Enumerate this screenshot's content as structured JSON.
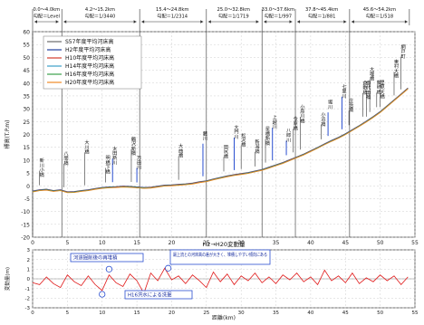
{
  "chart_data": [
    {
      "type": "line",
      "ylabel": "標高(T.P.m)",
      "xlim": [
        0,
        55
      ],
      "ylim": [
        -20,
        60
      ],
      "y_ticks": [
        -20,
        -15,
        -10,
        -5,
        0,
        5,
        10,
        15,
        20,
        25,
        30,
        35,
        40,
        45,
        50,
        55,
        60
      ],
      "x_ticks": [
        0,
        5,
        10,
        15,
        20,
        25,
        30,
        35,
        40,
        45,
        50,
        55
      ],
      "grid": true,
      "legend_position": "top-left",
      "x": [
        0,
        1,
        2,
        3,
        4,
        5,
        6,
        7,
        8,
        9,
        10,
        11,
        12,
        13,
        14,
        15,
        16,
        17,
        18,
        19,
        20,
        21,
        22,
        23,
        24,
        25,
        26,
        27,
        28,
        29,
        30,
        31,
        32,
        33,
        34,
        35,
        36,
        37,
        38,
        39,
        40,
        41,
        42,
        43,
        44,
        45,
        46,
        47,
        48,
        49,
        50,
        51,
        52,
        53,
        54
      ],
      "series": [
        {
          "name": "S57年度平均河床高",
          "color": "#6b6b6b",
          "values": [
            -2,
            -1.5,
            -1.3,
            -1.8,
            -1.5,
            -2.3,
            -2.2,
            -1.8,
            -1.5,
            -1.0,
            -0.6,
            -0.4,
            -0.3,
            -0.1,
            -0.2,
            -0.4,
            -0.6,
            -0.5,
            -0.1,
            0.3,
            0.4,
            0.6,
            0.8,
            1.1,
            1.6,
            2.0,
            2.7,
            3.3,
            3.9,
            4.4,
            4.8,
            5.2,
            5.8,
            6.4,
            7.3,
            8.2,
            9.1,
            10.2,
            11.3,
            12.4,
            13.7,
            15.0,
            16.4,
            17.7,
            18.9,
            20.3,
            21.9,
            23.5,
            25.2,
            27.0,
            28.9,
            31.2,
            33.5,
            35.8,
            38.1
          ]
        },
        {
          "name": "H2年度平均河床高",
          "color": "#1f3f9e",
          "values": [
            -2.1,
            -1.6,
            -1.4,
            -1.9,
            -1.6,
            -2.4,
            -2.3,
            -1.9,
            -1.6,
            -1.1,
            -0.7,
            -0.5,
            -0.4,
            -0.2,
            -0.3,
            -0.5,
            -0.7,
            -0.6,
            -0.2,
            0.2,
            0.3,
            0.5,
            0.7,
            1.0,
            1.5,
            1.9,
            2.6,
            3.2,
            3.8,
            4.3,
            4.7,
            5.1,
            5.7,
            6.3,
            7.2,
            8.1,
            9.0,
            10.1,
            11.2,
            12.3,
            13.6,
            14.9,
            16.3,
            17.6,
            18.8,
            20.2,
            21.8,
            23.4,
            25.1,
            26.9,
            28.8,
            31.1,
            33.4,
            35.7,
            38.0
          ]
        },
        {
          "name": "H10年度平均河床高",
          "color": "#d33a2c",
          "values": [
            -2.2,
            -1.7,
            -1.5,
            -2.0,
            -1.7,
            -2.5,
            -2.4,
            -2.0,
            -1.7,
            -1.2,
            -0.8,
            -0.6,
            -0.5,
            -0.3,
            -0.4,
            -0.6,
            -0.8,
            -0.7,
            -0.3,
            0.1,
            0.2,
            0.4,
            0.6,
            0.9,
            1.4,
            1.8,
            2.5,
            3.1,
            3.7,
            4.2,
            4.6,
            5.0,
            5.6,
            6.2,
            7.1,
            8.0,
            8.9,
            10.0,
            11.1,
            12.2,
            13.5,
            14.8,
            16.2,
            17.5,
            18.7,
            20.1,
            21.7,
            23.3,
            25.0,
            26.8,
            28.7,
            31.0,
            33.3,
            35.6,
            37.9
          ]
        },
        {
          "name": "H14年度平均河床高",
          "color": "#3ba0c8",
          "values": [
            -2.3,
            -1.8,
            -1.6,
            -2.1,
            -1.8,
            -2.6,
            -2.5,
            -2.1,
            -1.8,
            -1.3,
            -0.9,
            -0.7,
            -0.6,
            -0.4,
            -0.5,
            -0.7,
            -0.9,
            -0.8,
            -0.4,
            0.0,
            0.1,
            0.3,
            0.5,
            0.8,
            1.3,
            1.7,
            2.4,
            3.0,
            3.6,
            4.1,
            4.5,
            4.9,
            5.5,
            6.1,
            7.0,
            7.9,
            8.8,
            9.9,
            11.0,
            12.1,
            13.4,
            14.7,
            16.1,
            17.4,
            18.6,
            20.0,
            21.6,
            23.2,
            24.9,
            26.7,
            28.6,
            30.9,
            33.2,
            35.5,
            37.8
          ]
        },
        {
          "name": "H16年度平均河床高",
          "color": "#3aa04a",
          "values": [
            -2.3,
            -1.8,
            -1.6,
            -2.1,
            -1.8,
            -2.6,
            -2.5,
            -2.1,
            -1.8,
            -1.3,
            -0.9,
            -0.7,
            -0.6,
            -0.4,
            -0.5,
            -0.7,
            -0.9,
            -0.8,
            -0.4,
            0.0,
            0.1,
            0.3,
            0.5,
            0.8,
            1.3,
            1.7,
            2.4,
            3.0,
            3.6,
            4.1,
            4.5,
            4.9,
            5.5,
            6.1,
            7.0,
            7.9,
            8.8,
            9.9,
            11.0,
            12.1,
            13.4,
            14.7,
            16.1,
            17.4,
            18.6,
            20.0,
            21.6,
            23.2,
            24.9,
            26.7,
            28.6,
            30.9,
            33.2,
            35.5,
            37.8
          ]
        },
        {
          "name": "H20年度平均河床高",
          "color": "#f08a24",
          "values": [
            -2.4,
            -1.9,
            -1.7,
            -2.2,
            -1.9,
            -2.7,
            -2.6,
            -2.2,
            -1.9,
            -1.4,
            -1.0,
            -0.8,
            -0.7,
            -0.5,
            -0.6,
            -0.8,
            -1.0,
            -0.9,
            -0.5,
            -0.1,
            0.0,
            0.2,
            0.4,
            0.7,
            1.2,
            1.6,
            2.3,
            2.9,
            3.5,
            4.0,
            4.4,
            4.8,
            5.4,
            6.0,
            6.9,
            7.8,
            8.7,
            9.8,
            10.9,
            12.0,
            13.3,
            14.6,
            16.0,
            17.3,
            18.5,
            19.9,
            21.5,
            23.1,
            24.8,
            26.6,
            28.5,
            30.8,
            33.1,
            35.4,
            37.7
          ]
        }
      ],
      "section_labels": [
        {
          "range": "0.0〜4.0km",
          "slope": "勾配＝Level",
          "from": 0,
          "to": 4.0
        },
        {
          "range": "4.2〜15.2km",
          "slope": "勾配＝1/3440",
          "from": 4.2,
          "to": 15.2
        },
        {
          "range": "15.4〜24.8km",
          "slope": "勾配＝1/2314",
          "from": 15.4,
          "to": 24.8
        },
        {
          "range": "25.0〜32.8km",
          "slope": "勾配＝1/1719",
          "from": 25.0,
          "to": 32.8
        },
        {
          "range": "33.0〜37.6km",
          "slope": "勾配＝1/997",
          "from": 33.0,
          "to": 37.6
        },
        {
          "range": "37.8〜45.4km",
          "slope": "勾配＝1/881",
          "from": 37.8,
          "to": 45.4
        },
        {
          "range": "45.6〜54.2km",
          "slope": "勾配＝1/518",
          "from": 45.6,
          "to": 54.2
        }
      ],
      "annotations": [
        {
          "text": "新川小橋",
          "x": 1.0
        },
        {
          "text": "八間橋",
          "x": 4.5
        },
        {
          "text": "大川橋",
          "x": 7.5
        },
        {
          "text": "明橋下橋",
          "x": 10.5
        },
        {
          "text": "太田新川",
          "x": 11.5
        },
        {
          "text": "鶴沢新橋",
          "x": 14.2
        },
        {
          "text": "万田川",
          "x": 15.0
        },
        {
          "text": "大曲橋",
          "x": 21.0
        },
        {
          "text": "藪川",
          "x": 24.5
        },
        {
          "text": "田尻橋",
          "x": 27.5
        },
        {
          "text": "松沢橋",
          "x": 30.0
        },
        {
          "text": "大門川",
          "x": 29.0
        },
        {
          "text": "新潟橋",
          "x": 32.0
        },
        {
          "text": "星橋新橋",
          "x": 33.5
        },
        {
          "text": "上越川",
          "x": 34.5
        },
        {
          "text": "八郎川",
          "x": 36.5
        },
        {
          "text": "今原橋",
          "x": 37.5
        },
        {
          "text": "小原川橋",
          "x": 38.5
        },
        {
          "text": "小浜橋",
          "x": 41.5
        },
        {
          "text": "堀川",
          "x": 42.5
        },
        {
          "text": "七里川",
          "x": 44.5
        },
        {
          "text": "庄治橋",
          "x": 45.5
        },
        {
          "text": "倉敷橋",
          "x": 47.5
        },
        {
          "text": "大堰橋",
          "x": 48.5
        },
        {
          "text": "里見大橋",
          "x": 50.0
        },
        {
          "text": "東村大橋",
          "x": 52.0
        },
        {
          "text": "網戸町",
          "x": 53.0
        },
        {
          "text": "藤崎橋",
          "x": 49.5
        },
        {
          "text": "御代田橋",
          "x": 48.0
        }
      ]
    },
    {
      "type": "line",
      "title": "H2→H20変動量",
      "xlabel": "距離(km)",
      "ylabel": "変動量(m)",
      "xlim": [
        0,
        55
      ],
      "ylim": [
        -3,
        3
      ],
      "y_ticks": [
        -3,
        -2,
        -1,
        0,
        1,
        2,
        3
      ],
      "x_ticks": [
        0,
        5,
        10,
        15,
        20,
        25,
        30,
        35,
        40,
        45,
        50,
        55
      ],
      "grid": true,
      "x": [
        0,
        1,
        2,
        3,
        4,
        5,
        6,
        7,
        8,
        9,
        10,
        11,
        12,
        13,
        14,
        15,
        16,
        17,
        18,
        19,
        20,
        21,
        22,
        23,
        24,
        25,
        26,
        27,
        28,
        29,
        30,
        31,
        32,
        33,
        34,
        35,
        36,
        37,
        38,
        39,
        40,
        41,
        42,
        43,
        44,
        45,
        46,
        47,
        48,
        49,
        50,
        51,
        52,
        53,
        54
      ],
      "series": [
        {
          "color": "#e01818",
          "values": [
            -0.4,
            -0.6,
            0.2,
            -0.5,
            -0.9,
            0.4,
            -0.3,
            -0.7,
            0.3,
            -0.6,
            -1.2,
            0.4,
            -0.4,
            -0.8,
            0.5,
            -0.2,
            -1.5,
            0.6,
            -0.2,
            1.1,
            -0.1,
            0.3,
            -0.5,
            0.4,
            -0.2,
            -0.9,
            0.7,
            -0.3,
            0.5,
            -0.6,
            0.3,
            -0.2,
            0.6,
            -0.4,
            0.2,
            -0.5,
            0.4,
            -0.1,
            0.6,
            -0.3,
            0.2,
            -0.6,
            0.9,
            -0.2,
            0.3,
            -0.4,
            0.6,
            -0.5,
            0.1,
            -0.3,
            0.4,
            -0.2,
            0.3,
            -0.6,
            0.2
          ]
        }
      ],
      "annotations": [
        {
          "text": "河道掘削後の再堆積",
          "x": 11.5,
          "y": 1.6
        },
        {
          "text": "H16洪水による洗掘",
          "x": 10.0,
          "y": -2.1
        },
        {
          "text": "最上流との河床高の差が大きく、堆積しやすい傾向にある",
          "x": 19.5,
          "y": 1.2
        }
      ]
    }
  ]
}
